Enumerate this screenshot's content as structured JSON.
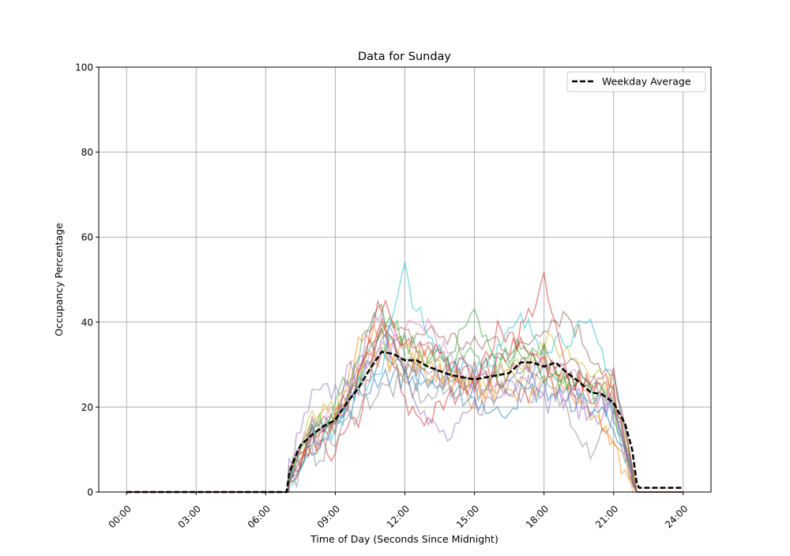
{
  "chart_data": {
    "type": "line",
    "title": "Data for Sunday",
    "xlabel": "Time of Day (Seconds Since Midnight)",
    "ylabel": "Occupancy Percentage",
    "xlim_hours": [
      -1.2,
      25.2
    ],
    "ylim": [
      0,
      100
    ],
    "grid": true,
    "legend_placement": "top-right",
    "x_ticks": [
      {
        "hour": 0,
        "label": "00:00"
      },
      {
        "hour": 3,
        "label": "03:00"
      },
      {
        "hour": 6,
        "label": "06:00"
      },
      {
        "hour": 9,
        "label": "09:00"
      },
      {
        "hour": 12,
        "label": "12:00"
      },
      {
        "hour": 15,
        "label": "15:00"
      },
      {
        "hour": 18,
        "label": "18:00"
      },
      {
        "hour": 21,
        "label": "21:00"
      },
      {
        "hour": 24,
        "label": "24:00"
      }
    ],
    "y_ticks": [
      0,
      20,
      40,
      60,
      80,
      100
    ],
    "series_hours": [
      7,
      8,
      9,
      10,
      11,
      12,
      13,
      14,
      15,
      16,
      17,
      18,
      19,
      20,
      21,
      22
    ],
    "series": [
      {
        "color": "#1f77b4",
        "values": [
          3,
          12,
          16,
          26,
          31,
          28,
          27,
          25,
          24,
          26,
          29,
          28,
          25,
          22,
          19,
          0
        ]
      },
      {
        "color": "#ff7f0e",
        "values": [
          4,
          14,
          20,
          35,
          38,
          33,
          30,
          26,
          22,
          25,
          27,
          30,
          24,
          20,
          12,
          0
        ]
      },
      {
        "color": "#2ca02c",
        "values": [
          5,
          16,
          18,
          27,
          36,
          34,
          31,
          30,
          33,
          29,
          34,
          32,
          28,
          24,
          21,
          0
        ]
      },
      {
        "color": "#d62728",
        "values": [
          2,
          9,
          10,
          17,
          40,
          20,
          17,
          22,
          28,
          30,
          38,
          49,
          27,
          26,
          23,
          0
        ]
      },
      {
        "color": "#9467bd",
        "values": [
          6,
          22,
          24,
          30,
          44,
          30,
          16,
          12,
          20,
          22,
          28,
          26,
          22,
          18,
          20,
          0
        ]
      },
      {
        "color": "#8c564b",
        "values": [
          3,
          13,
          17,
          28,
          40,
          36,
          38,
          36,
          34,
          36,
          33,
          40,
          42,
          33,
          26,
          0
        ]
      },
      {
        "color": "#e377c2",
        "values": [
          4,
          15,
          18,
          27,
          34,
          37,
          40,
          30,
          29,
          27,
          31,
          30,
          27,
          24,
          22,
          0
        ]
      },
      {
        "color": "#7f7f7f",
        "values": [
          2,
          8,
          12,
          20,
          24,
          25,
          22,
          24,
          26,
          23,
          26,
          25,
          20,
          10,
          18,
          0
        ]
      },
      {
        "color": "#bcbd22",
        "values": [
          4,
          17,
          19,
          26,
          33,
          31,
          29,
          28,
          27,
          28,
          31,
          35,
          33,
          30,
          24,
          0
        ]
      },
      {
        "color": "#17becf",
        "values": [
          3,
          11,
          15,
          24,
          30,
          52,
          35,
          31,
          30,
          33,
          40,
          35,
          37,
          38,
          28,
          0
        ]
      },
      {
        "color": "#1f77b4",
        "values": [
          4,
          13,
          16,
          22,
          28,
          27,
          26,
          24,
          22,
          18,
          23,
          24,
          22,
          20,
          17,
          0
        ]
      },
      {
        "color": "#ff7f0e",
        "values": [
          3,
          12,
          17,
          30,
          32,
          29,
          28,
          27,
          25,
          24,
          22,
          27,
          24,
          18,
          10,
          0
        ]
      },
      {
        "color": "#2ca02c",
        "values": [
          5,
          15,
          21,
          33,
          42,
          35,
          32,
          31,
          44,
          30,
          35,
          28,
          26,
          25,
          20,
          0
        ]
      },
      {
        "color": "#d62728",
        "values": [
          3,
          11,
          14,
          27,
          45,
          33,
          34,
          29,
          27,
          38,
          36,
          30,
          26,
          26,
          27,
          0
        ]
      },
      {
        "color": "#9467bd",
        "values": [
          4,
          14,
          18,
          29,
          35,
          32,
          29,
          27,
          26,
          25,
          24,
          21,
          23,
          21,
          21,
          0
        ]
      },
      {
        "color": "#8c564b",
        "values": [
          3,
          12,
          16,
          25,
          37,
          30,
          33,
          29,
          28,
          27,
          30,
          33,
          31,
          27,
          24,
          0
        ]
      }
    ],
    "average": {
      "name": "Weekday Average",
      "color": "#000000",
      "style": "dashed",
      "points": [
        [
          0,
          0
        ],
        [
          6.9,
          0
        ],
        [
          7.0,
          4
        ],
        [
          7.25,
          8
        ],
        [
          7.5,
          11
        ],
        [
          8,
          13.5
        ],
        [
          8.5,
          15.5
        ],
        [
          9,
          17
        ],
        [
          9.5,
          21
        ],
        [
          10,
          24.5
        ],
        [
          10.5,
          29
        ],
        [
          11,
          33
        ],
        [
          11.5,
          32.5
        ],
        [
          12,
          31
        ],
        [
          12.5,
          31
        ],
        [
          13,
          29.5
        ],
        [
          13.5,
          28.5
        ],
        [
          14,
          27.5
        ],
        [
          14.5,
          27
        ],
        [
          15,
          26.5
        ],
        [
          15.5,
          27
        ],
        [
          16,
          27.5
        ],
        [
          16.5,
          28
        ],
        [
          17,
          30.5
        ],
        [
          17.5,
          30.5
        ],
        [
          18,
          29.5
        ],
        [
          18.5,
          30.5
        ],
        [
          19,
          28
        ],
        [
          19.5,
          26
        ],
        [
          20,
          23.5
        ],
        [
          20.5,
          23
        ],
        [
          21,
          21
        ],
        [
          21.5,
          16
        ],
        [
          21.8,
          10
        ],
        [
          22,
          2
        ],
        [
          22.1,
          1
        ],
        [
          24,
          1
        ]
      ]
    }
  }
}
